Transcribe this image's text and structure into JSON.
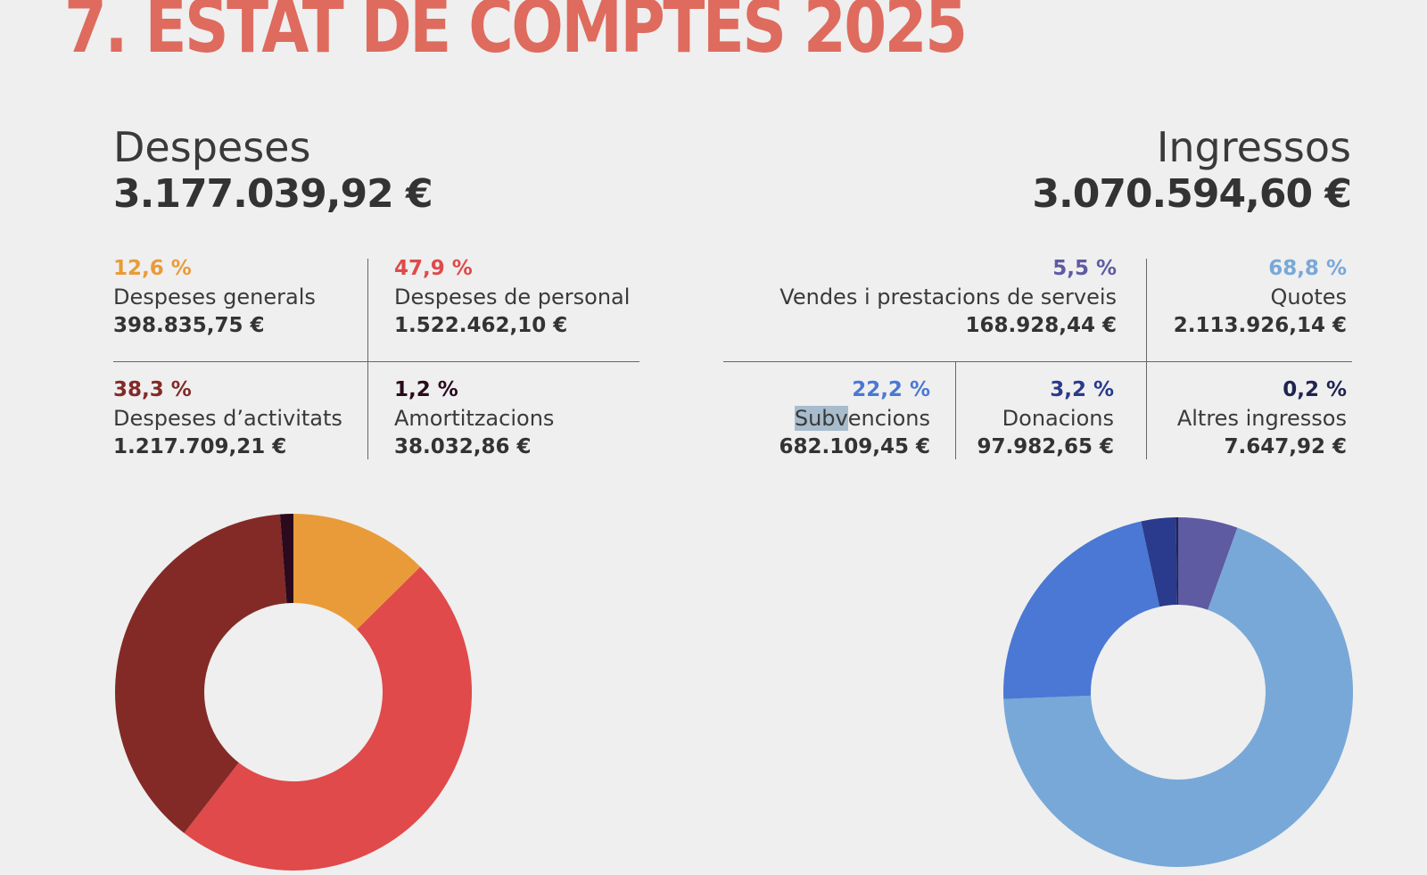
{
  "title": "7. ESTAT DE COMPTES 2025",
  "colors": {
    "title": "#de6b5e",
    "despeses_generals": "#e99b39",
    "despeses_personal": "#e04a4a",
    "despeses_activitats": "#832a27",
    "amortitzacions": "#2a0a1c",
    "vendes": "#5e5ba2",
    "quotes": "#78a8d8",
    "subvencions": "#4a78d4",
    "donacions": "#2a3a8c",
    "altres": "#1f2450"
  },
  "despeses": {
    "label": "Despeses",
    "total": "3.177.039,92 €",
    "items": [
      {
        "pct": "12,6 %",
        "name": "Despeses generals",
        "value": "398.835,75 €"
      },
      {
        "pct": "47,9 %",
        "name": "Despeses de personal",
        "value": "1.522.462,10 €"
      },
      {
        "pct": "38,3 %",
        "name": "Despeses d’activitats",
        "value": "1.217.709,21 €"
      },
      {
        "pct": "1,2 %",
        "name": "Amortitzacions",
        "value": "38.032,86 €"
      }
    ]
  },
  "ingressos": {
    "label": "Ingressos",
    "total": "3.070.594,60 €",
    "items": [
      {
        "pct": "5,5 %",
        "name": "Vendes i prestacions de serveis",
        "value": "168.928,44 €"
      },
      {
        "pct": "68,8 %",
        "name": "Quotes",
        "value": "2.113.926,14 €"
      },
      {
        "pct": "22,2 %",
        "name": "Subvencions",
        "value": "682.109,45 €"
      },
      {
        "pct": "3,2 %",
        "name": "Donacions",
        "value": "97.982,65 €"
      },
      {
        "pct": "0,2 %",
        "name": "Altres ingressos",
        "value": "7.647,92 €"
      }
    ]
  },
  "chart_data": [
    {
      "type": "pie",
      "categories": [
        "Despeses generals",
        "Despeses de personal",
        "Despeses d’activitats",
        "Amortitzacions"
      ],
      "values": [
        12.6,
        47.9,
        38.3,
        1.2
      ],
      "colors": [
        "#e99b39",
        "#e04a4a",
        "#832a27",
        "#2a0a1c"
      ]
    },
    {
      "type": "pie",
      "categories": [
        "Vendes i prestacions de serveis",
        "Quotes",
        "Subvencions",
        "Donacions",
        "Altres ingressos"
      ],
      "values": [
        5.5,
        68.8,
        22.2,
        3.2,
        0.2
      ],
      "colors": [
        "#5e5ba2",
        "#78a8d8",
        "#4a78d4",
        "#2a3a8c",
        "#1f2450"
      ]
    }
  ]
}
